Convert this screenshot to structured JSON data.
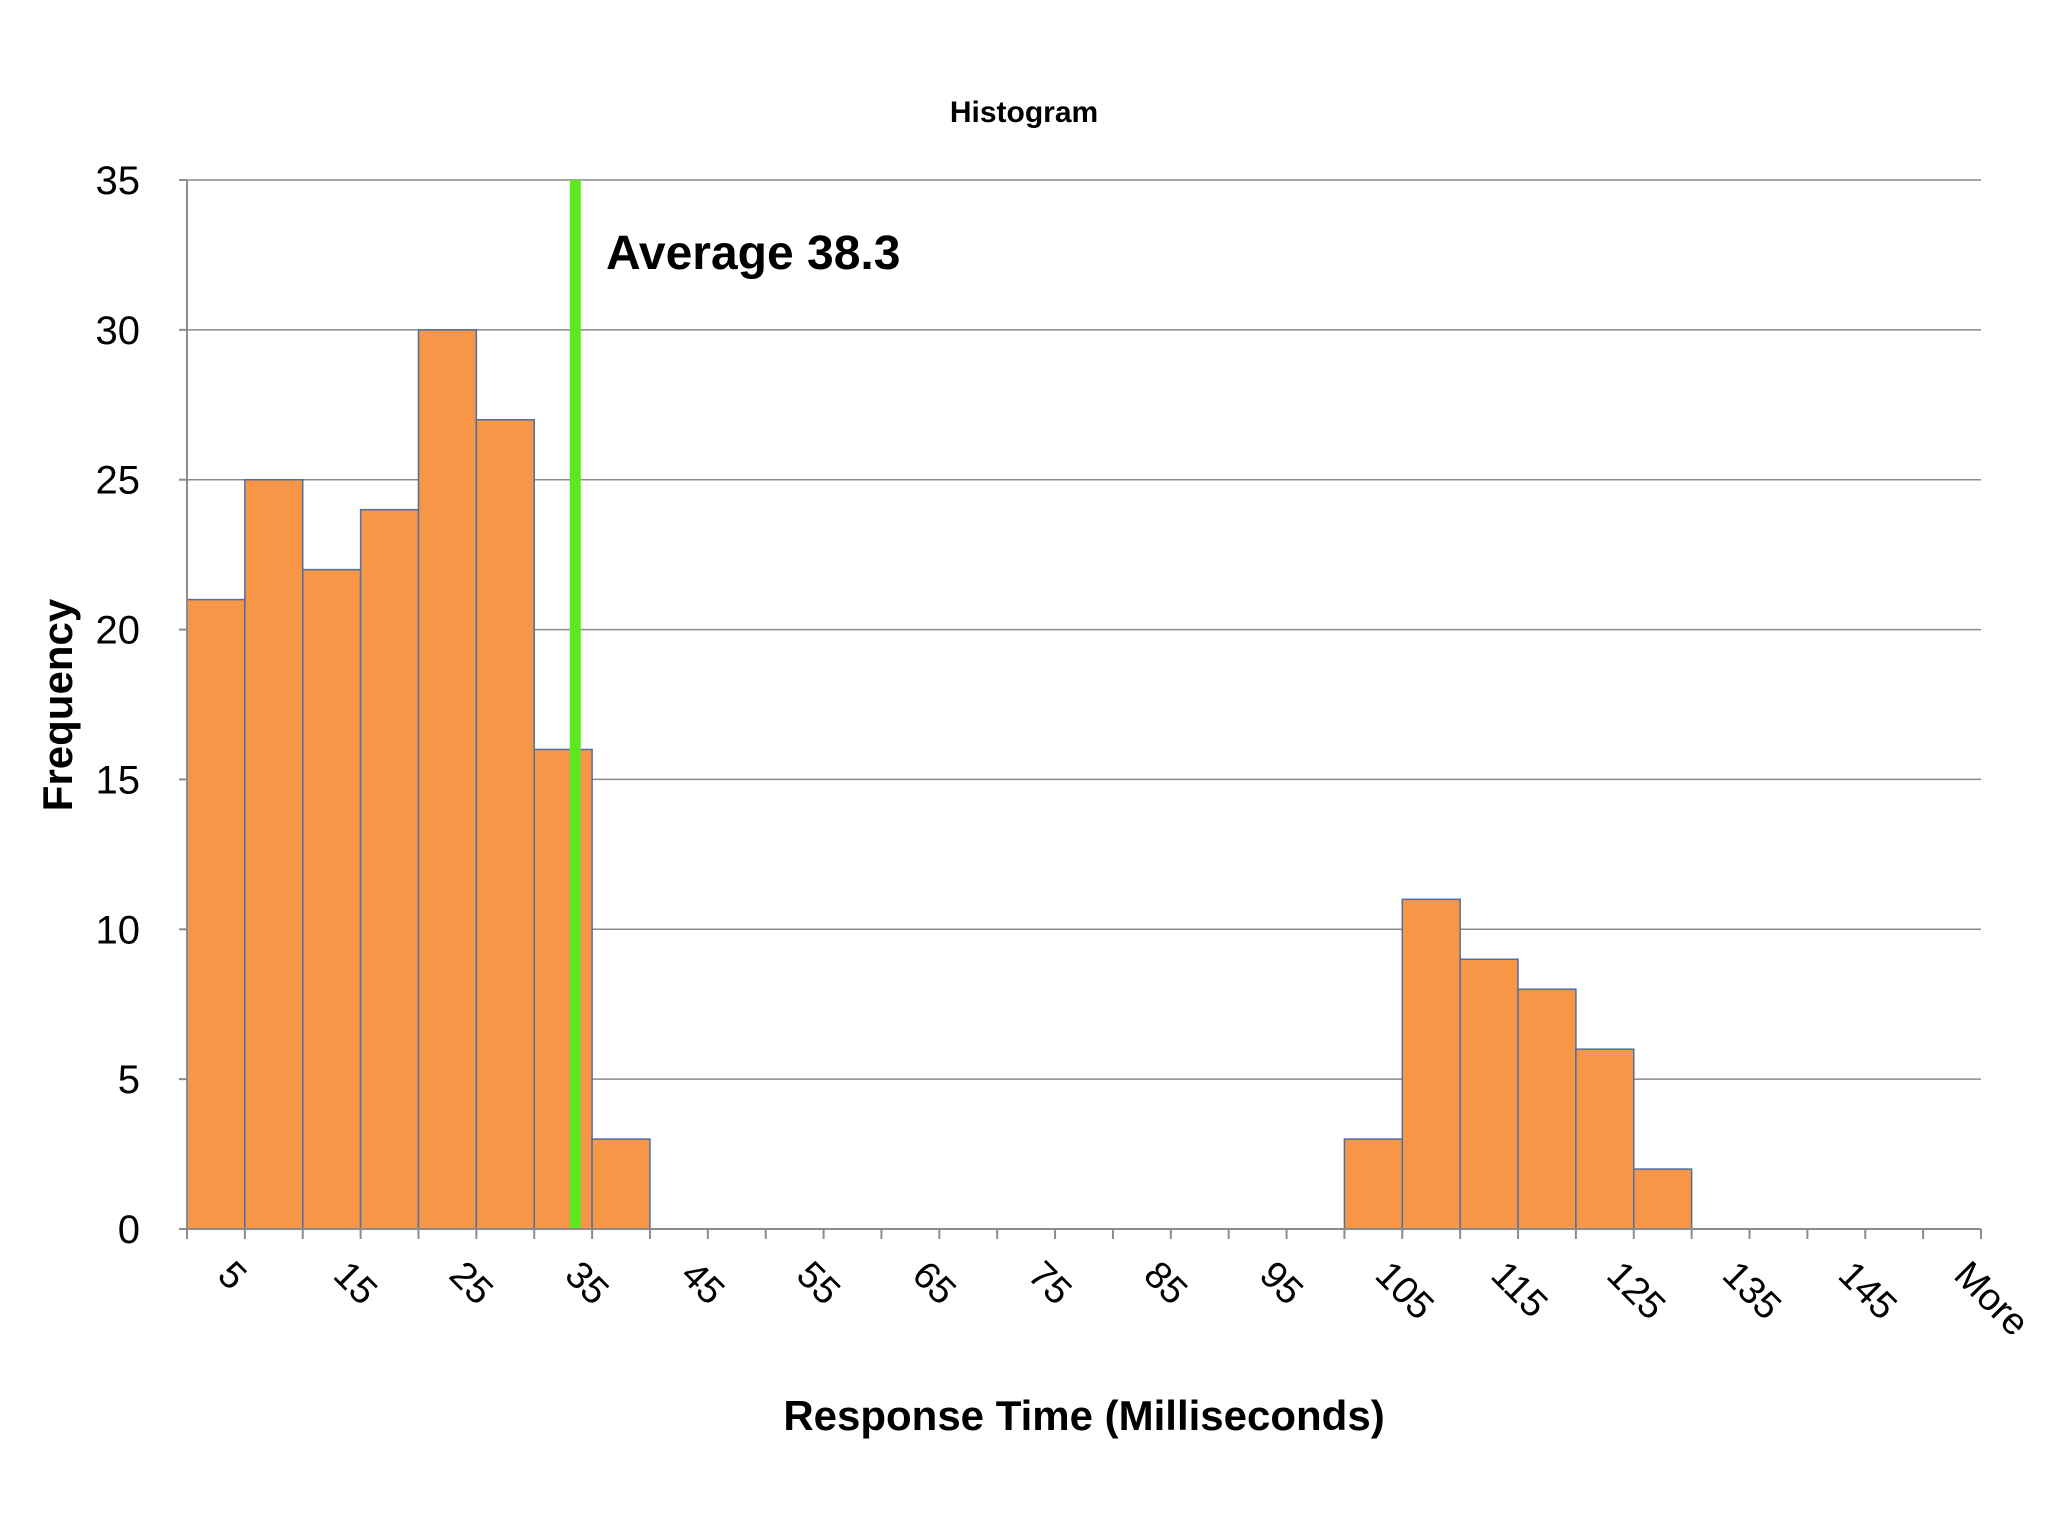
{
  "chart_data": {
    "type": "bar",
    "title": "Histogram",
    "xlabel": "Response Time (Milliseconds)",
    "ylabel": "Frequency",
    "ylim": [
      0,
      35
    ],
    "yticks": [
      "0",
      "5",
      "10",
      "15",
      "20",
      "25",
      "30",
      "35"
    ],
    "categories": [
      "0-5",
      "5-10",
      "10-15",
      "15-20",
      "20-25",
      "25-30",
      "30-35",
      "35-40",
      "40-45",
      "45-50",
      "50-55",
      "55-60",
      "60-65",
      "65-70",
      "70-75",
      "75-80",
      "80-85",
      "85-90",
      "90-95",
      "95-100",
      "100-105",
      "105-110",
      "110-115",
      "115-120",
      "120-125",
      "125-130",
      "130-135",
      "135-140",
      "140-145",
      "145-150",
      "More"
    ],
    "values": [
      21,
      25,
      22,
      24,
      30,
      27,
      16,
      3,
      0,
      0,
      0,
      0,
      0,
      0,
      0,
      0,
      0,
      0,
      0,
      0,
      3,
      11,
      9,
      8,
      6,
      2,
      0,
      0,
      0,
      0,
      0
    ],
    "xtick_labels": [
      "5",
      "15",
      "25",
      "35",
      "45",
      "55",
      "65",
      "75",
      "85",
      "95",
      "105",
      "115",
      "125",
      "135",
      "145",
      "More"
    ],
    "grid": true,
    "legend": "none",
    "average": {
      "value": 38.3,
      "label": "Average 38.3",
      "color": "#5ee61e"
    },
    "colors": {
      "bar_fill": "#f79646",
      "bar_stroke": "#4f6f9e",
      "gridline": "#8c8c8c",
      "axis": "#8c8c8c"
    }
  }
}
